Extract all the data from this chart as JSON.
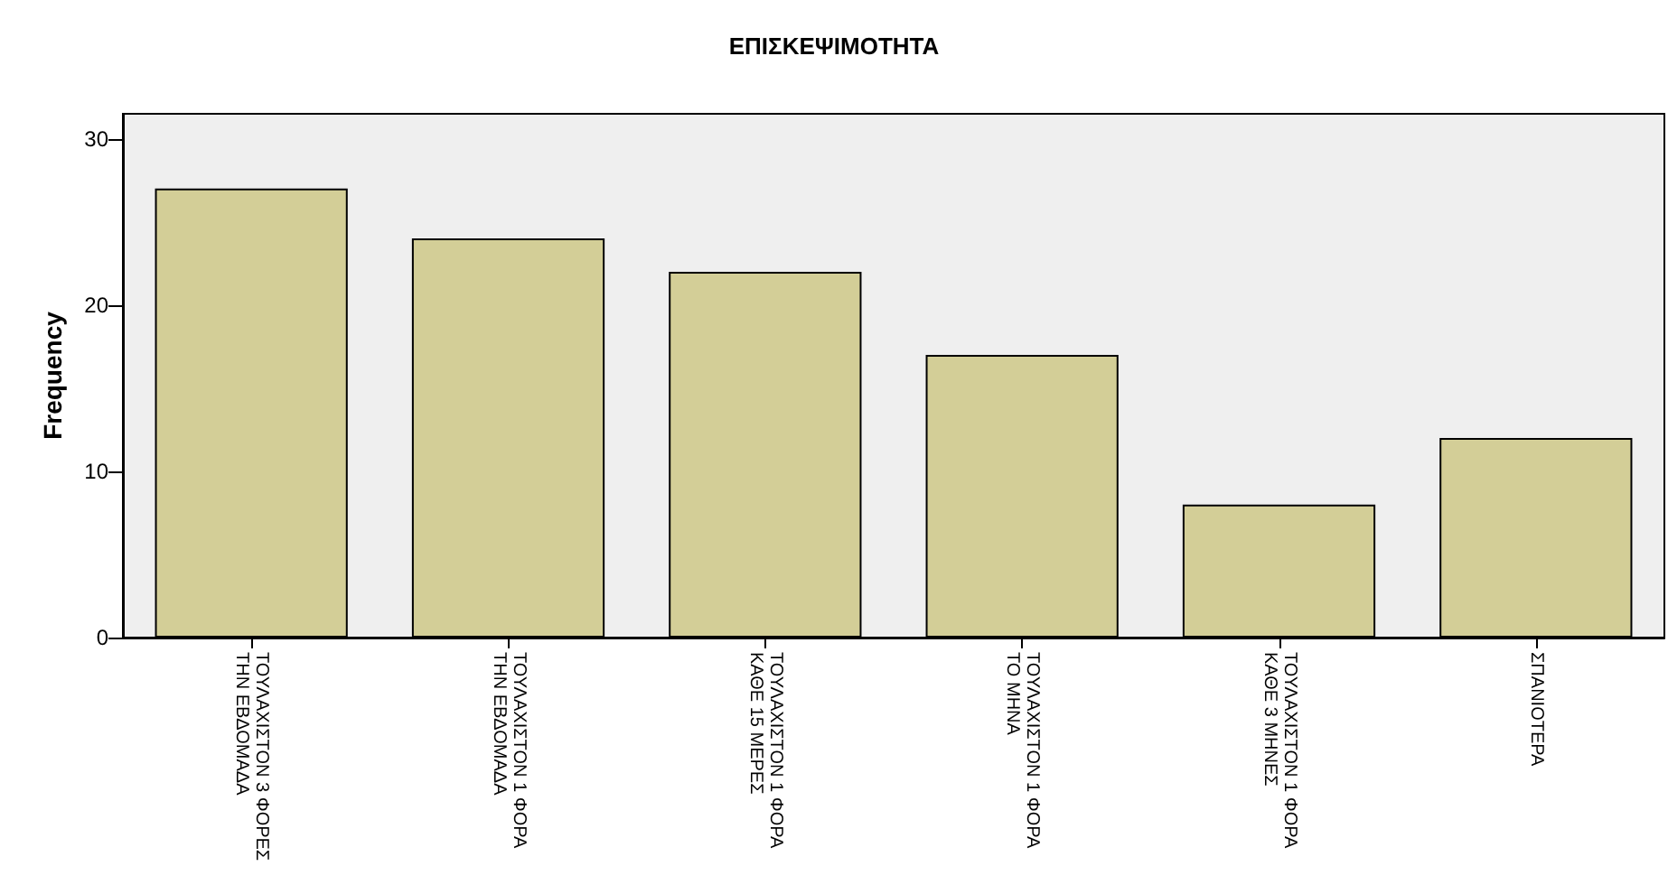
{
  "chart_data": {
    "type": "bar",
    "title": "ΕΠΙΣΚΕΨΙΜΟΤΗΤΑ",
    "ylabel": "Frequency",
    "categories": [
      "ΤΟΥΛΑΧΙΣΤΟΝ 3 ΦΟΡΕΣ\nΤΗΝ ΕΒΔΟΜΑΔΑ",
      "ΤΟΥΛΑΧΙΣΤΟΝ 1 ΦΟΡΑ\nΤΗΝ ΕΒΔΟΜΑΔΑ",
      "ΤΟΥΛΑΧΙΣΤΟΝ 1 ΦΟΡΑ\nΚΑΘΕ 15 ΜΕΡΕΣ",
      "ΤΟΥΛΑΧΙΣΤΟΝ 1 ΦΟΡΑ\nΤΟ ΜΗΝΑ",
      "ΤΟΥΛΑΧΙΣΤΟΝ 1 ΦΟΡΑ\nΚΑΘΕ 3 ΜΗΝΕΣ",
      "ΣΠΑΝΙΟΤΕΡΑ"
    ],
    "values": [
      27,
      24,
      22,
      17,
      8,
      12
    ],
    "color": "#d3ce97",
    "ylim": [
      0,
      31.5
    ],
    "yticks": [
      0,
      10,
      20,
      30
    ]
  }
}
